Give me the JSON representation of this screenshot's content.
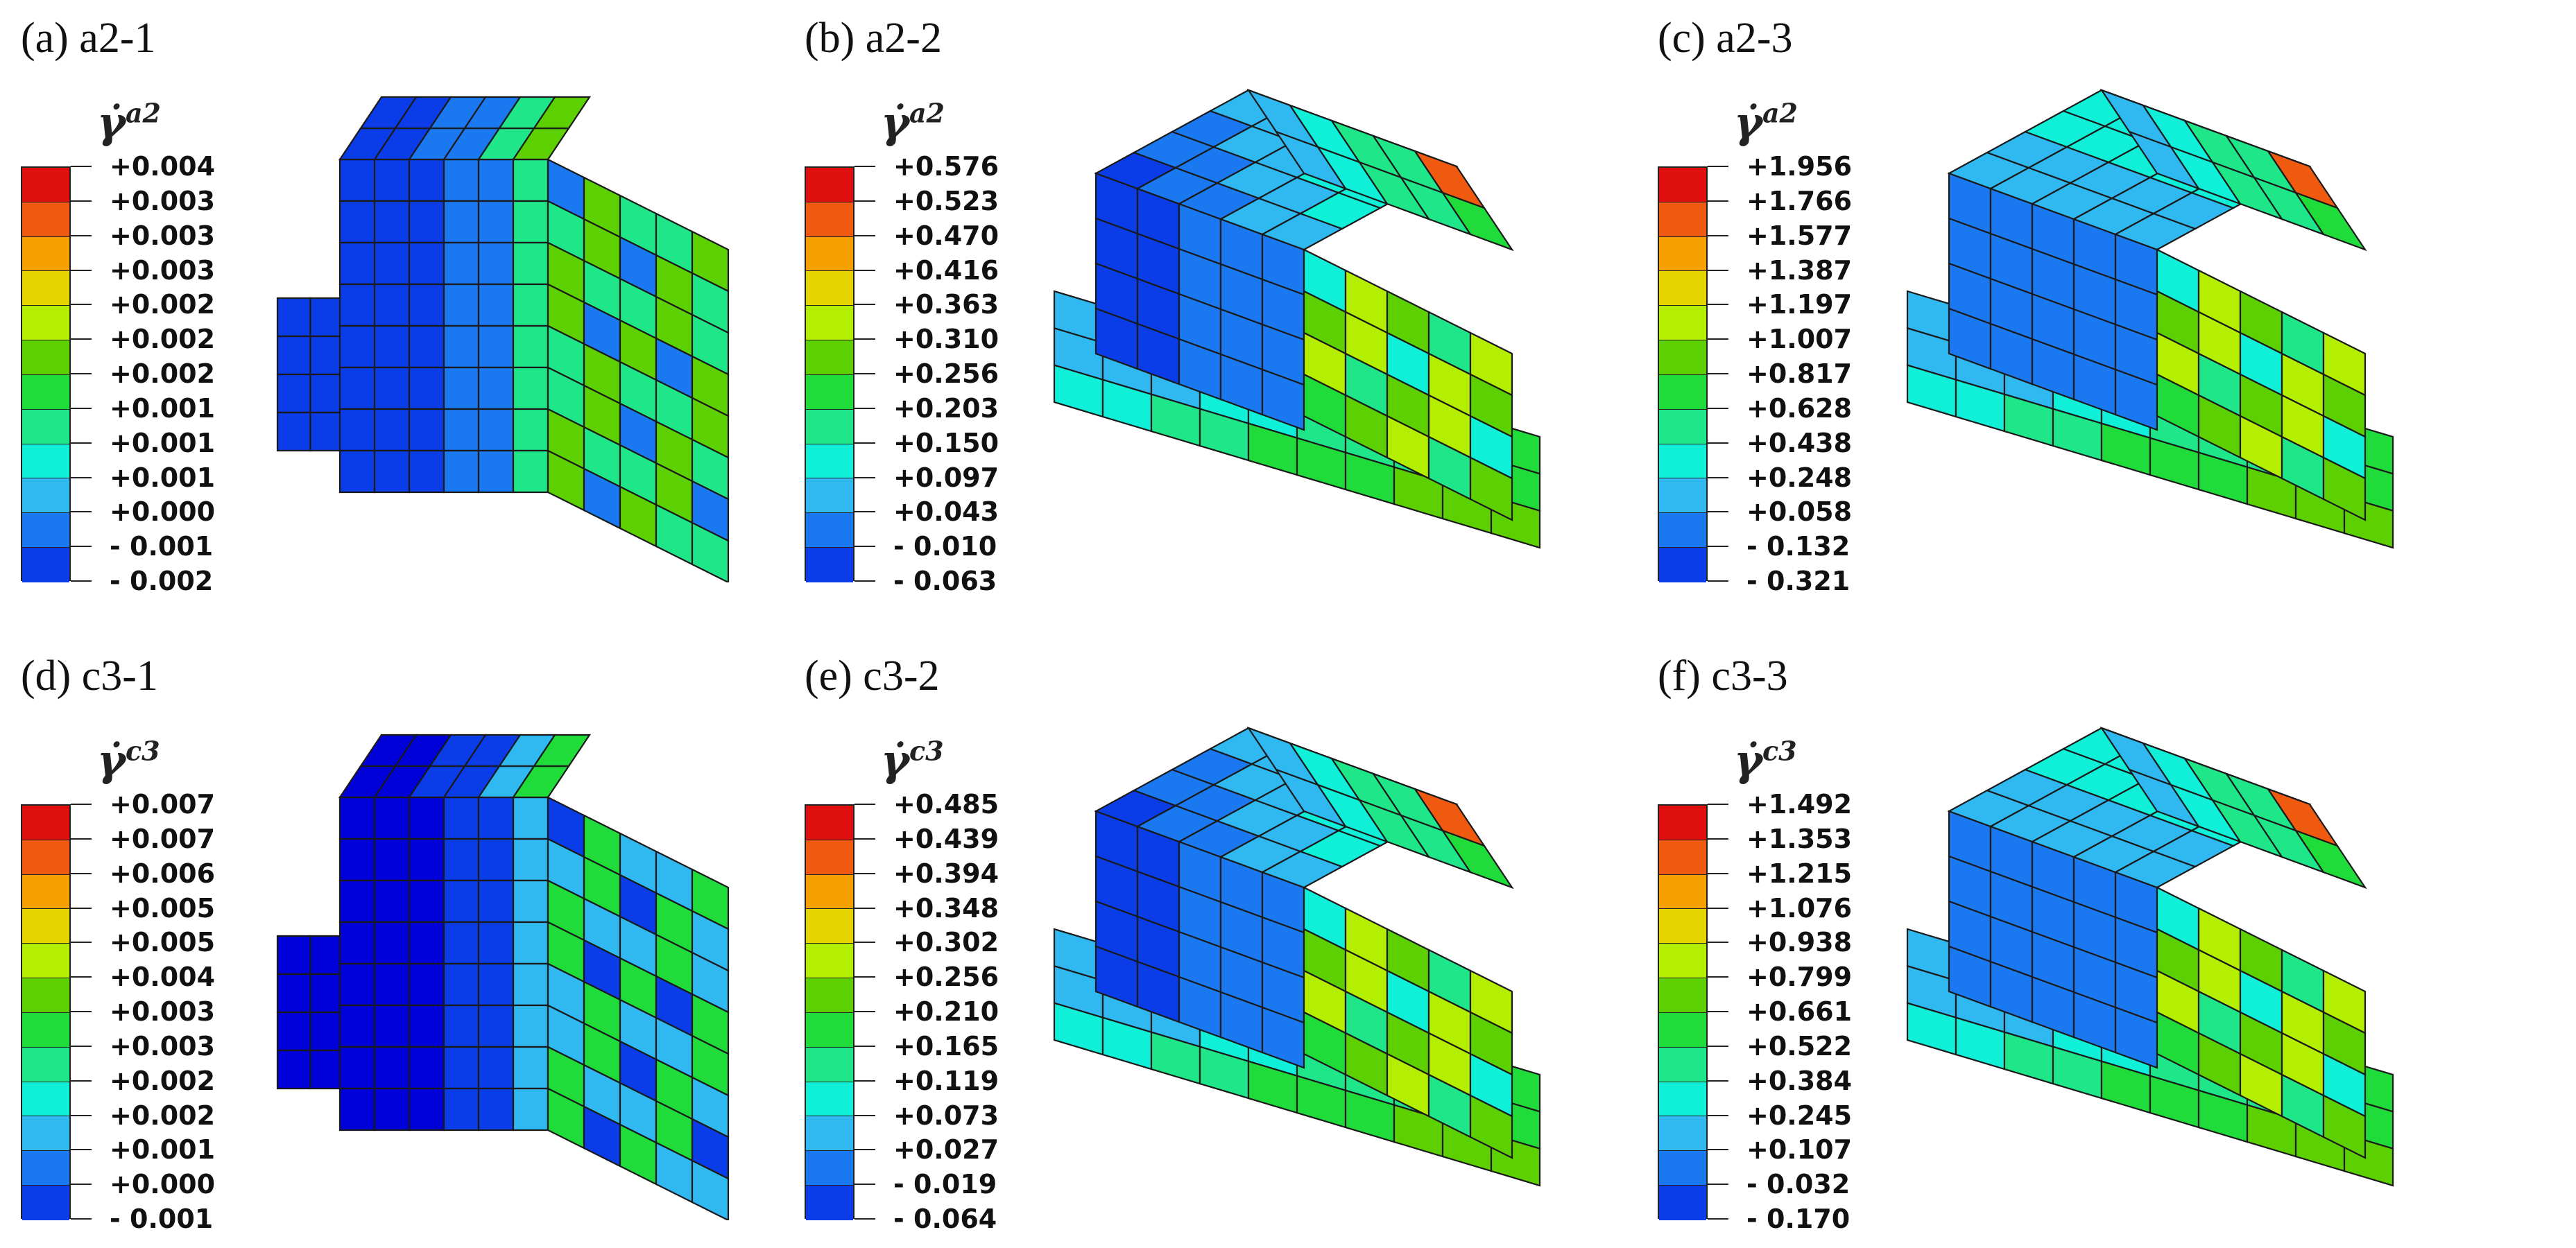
{
  "colormap": [
    "#e01010",
    "#f05a10",
    "#f5a000",
    "#e6d400",
    "#b4ee00",
    "#5cd000",
    "#20dc3a",
    "#20e68a",
    "#10f0d8",
    "#30b8f0",
    "#1a78f0",
    "#0a3ce8",
    "#0000d8"
  ],
  "panels": [
    {
      "label": "(a) a2-1",
      "symbol": "γ̇",
      "superscript": "a2",
      "legend_values": [
        "+0.004",
        "+0.003",
        "+0.003",
        "+0.003",
        "+0.002",
        "+0.002",
        "+0.002",
        "+0.001",
        "+0.001",
        "+0.001",
        "+0.000",
        "- 0.001",
        "- 0.002"
      ],
      "image_description_icon": "fem-mesh-cube-icon"
    },
    {
      "label": "(b) a2-2",
      "symbol": "γ̇",
      "superscript": "a2",
      "legend_values": [
        "+0.576",
        "+0.523",
        "+0.470",
        "+0.416",
        "+0.363",
        "+0.310",
        "+0.256",
        "+0.203",
        "+0.150",
        "+0.097",
        "+0.043",
        "- 0.010",
        "- 0.063"
      ],
      "image_description_icon": "fem-mesh-sheared-icon"
    },
    {
      "label": "(c) a2-3",
      "symbol": "γ̇",
      "superscript": "a2",
      "legend_values": [
        "+1.956",
        "+1.766",
        "+1.577",
        "+1.387",
        "+1.197",
        "+1.007",
        "+0.817",
        "+0.628",
        "+0.438",
        "+0.248",
        "+0.058",
        "- 0.132",
        "- 0.321"
      ],
      "image_description_icon": "fem-mesh-sheared-icon"
    },
    {
      "label": "(d) c3-1",
      "symbol": "γ̇",
      "superscript": "c3",
      "legend_values": [
        "+0.007",
        "+0.007",
        "+0.006",
        "+0.005",
        "+0.005",
        "+0.004",
        "+0.003",
        "+0.003",
        "+0.002",
        "+0.002",
        "+0.001",
        "+0.000",
        "- 0.001"
      ],
      "image_description_icon": "fem-mesh-cube-icon"
    },
    {
      "label": "(e) c3-2",
      "symbol": "γ̇",
      "superscript": "c3",
      "legend_values": [
        "+0.485",
        "+0.439",
        "+0.394",
        "+0.348",
        "+0.302",
        "+0.256",
        "+0.210",
        "+0.165",
        "+0.119",
        "+0.073",
        "+0.027",
        "- 0.019",
        "- 0.064"
      ],
      "image_description_icon": "fem-mesh-sheared-icon"
    },
    {
      "label": "(f) c3-3",
      "symbol": "γ̇",
      "superscript": "c3",
      "legend_values": [
        "+1.492",
        "+1.353",
        "+1.215",
        "+1.076",
        "+0.938",
        "+0.799",
        "+0.661",
        "+0.522",
        "+0.384",
        "+0.245",
        "+0.107",
        "- 0.032",
        "- 0.170"
      ],
      "image_description_icon": "fem-mesh-sheared-icon"
    }
  ]
}
